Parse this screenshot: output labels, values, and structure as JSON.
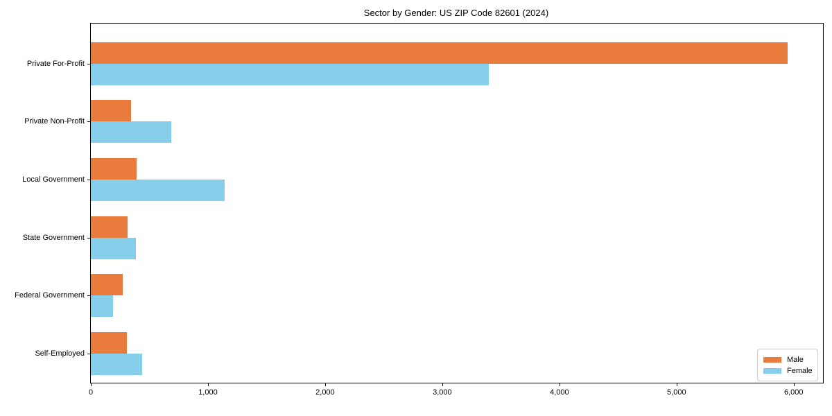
{
  "title": "Sector by Gender: US ZIP Code 82601 (2024)",
  "chart_data": {
    "type": "bar",
    "orientation": "horizontal",
    "title": "Sector by Gender: US ZIP Code 82601 (2024)",
    "categories": [
      "Private For-Profit",
      "Private Non-Profit",
      "Local Government",
      "State Government",
      "Federal Government",
      "Self-Employed"
    ],
    "series": [
      {
        "name": "Male",
        "color": "#e97c3c",
        "values": [
          5950,
          345,
          390,
          315,
          270,
          305
        ]
      },
      {
        "name": "Female",
        "color": "#87ceeb",
        "values": [
          3400,
          685,
          1145,
          385,
          190,
          440
        ]
      }
    ],
    "xlabel": "",
    "ylabel": "",
    "xlim": [
      0,
      6250
    ],
    "xticks": [
      0,
      1000,
      2000,
      3000,
      4000,
      5000,
      6000
    ],
    "xtick_labels": [
      "0",
      "1,000",
      "2,000",
      "3,000",
      "4,000",
      "5,000",
      "6,000"
    ],
    "grid": false,
    "legend": {
      "position": "lower right",
      "entries": [
        "Male",
        "Female"
      ]
    }
  }
}
